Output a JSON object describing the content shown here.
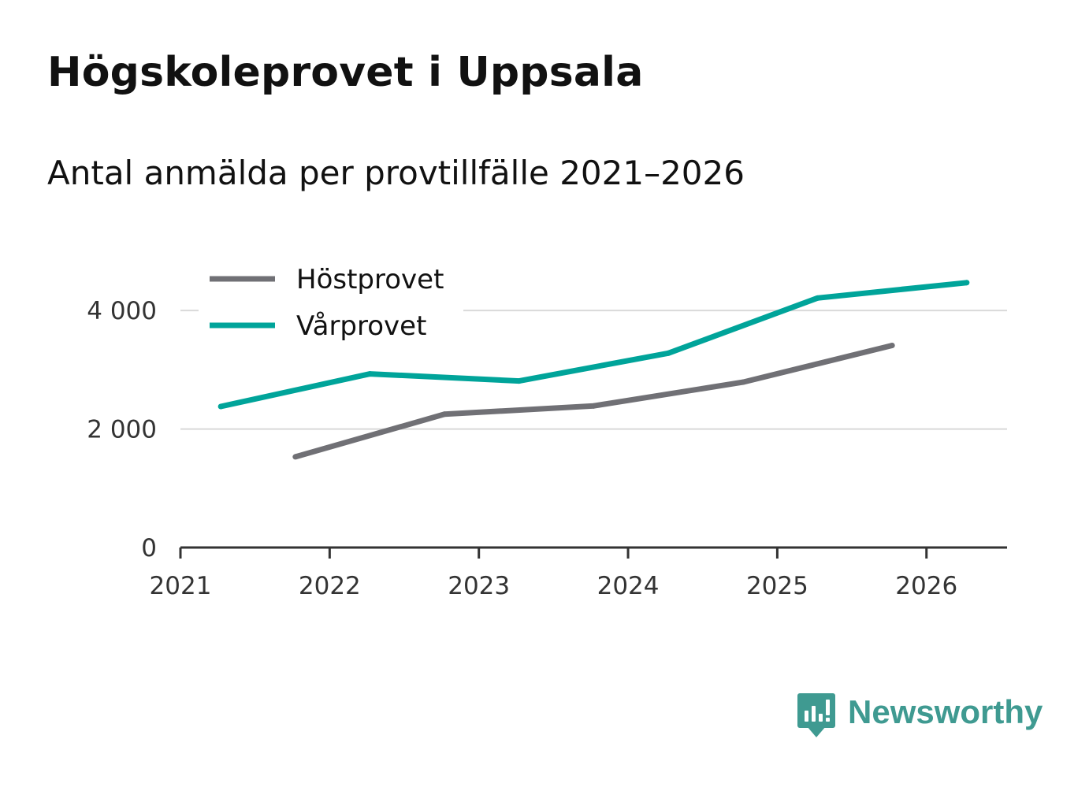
{
  "chart_data": {
    "type": "line",
    "title": "Högskoleprovet i Uppsala",
    "subtitle": "Antal anmälda per provtillfälle 2021–2026",
    "xlabel": "",
    "ylabel": "",
    "x_ticks": [
      "2021",
      "2022",
      "2023",
      "2024",
      "2025",
      "2026"
    ],
    "y_ticks": [
      {
        "value": 0,
        "label": "0"
      },
      {
        "value": 2000,
        "label": "2 000"
      },
      {
        "value": 4000,
        "label": "4 000"
      }
    ],
    "xlim": [
      2021.0,
      2026.54
    ],
    "ylim": [
      0,
      4600
    ],
    "grid": true,
    "legend_position": "top-left",
    "series": [
      {
        "name": "Höstprovet",
        "color": "#707075",
        "points": [
          {
            "x": 2021.77,
            "y": 1530
          },
          {
            "x": 2022.77,
            "y": 2250
          },
          {
            "x": 2023.77,
            "y": 2390
          },
          {
            "x": 2024.77,
            "y": 2790
          },
          {
            "x": 2025.77,
            "y": 3410
          }
        ]
      },
      {
        "name": "Vårprovet",
        "color": "#00a49a",
        "points": [
          {
            "x": 2021.27,
            "y": 2380
          },
          {
            "x": 2022.27,
            "y": 2930
          },
          {
            "x": 2023.27,
            "y": 2810
          },
          {
            "x": 2024.27,
            "y": 3280
          },
          {
            "x": 2025.27,
            "y": 4210
          },
          {
            "x": 2026.27,
            "y": 4470
          }
        ]
      }
    ]
  },
  "brand": {
    "name": "Newsworthy",
    "icon": "newsworthy-logo-icon",
    "color": "#3f9a91"
  }
}
